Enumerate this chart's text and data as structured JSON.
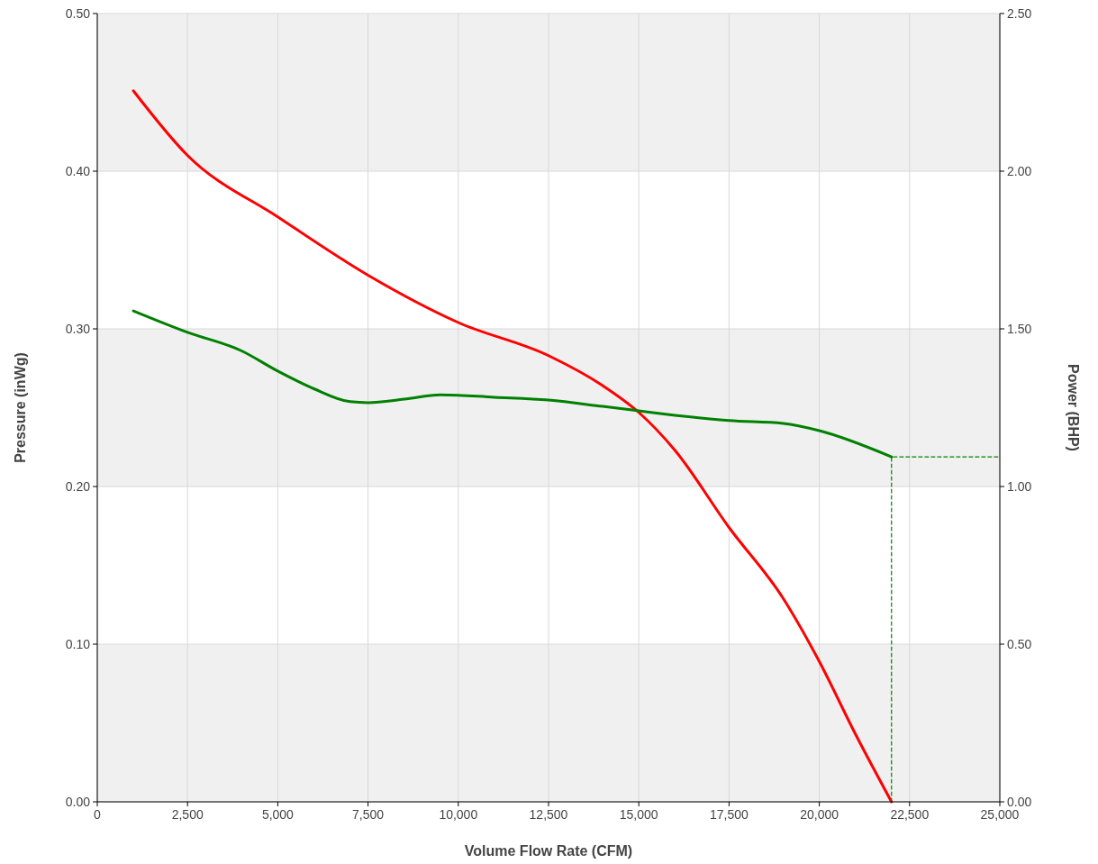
{
  "chart_data": {
    "type": "line",
    "xlabel": "Volume Flow Rate (CFM)",
    "ylabel": "Pressure (inWg)",
    "y2label": "Power (BHP)",
    "xlim": [
      0,
      25000
    ],
    "xticks": [
      {
        "value": 0,
        "label": "0"
      },
      {
        "value": 2500,
        "label": "2,500"
      },
      {
        "value": 5000,
        "label": "5,000"
      },
      {
        "value": 7500,
        "label": "7,500"
      },
      {
        "value": 10000,
        "label": "10,000"
      },
      {
        "value": 12500,
        "label": "12,500"
      },
      {
        "value": 15000,
        "label": "15,000"
      },
      {
        "value": 17500,
        "label": "17,500"
      },
      {
        "value": 20000,
        "label": "20,000"
      },
      {
        "value": 22500,
        "label": "22,500"
      },
      {
        "value": 25000,
        "label": "25,000"
      }
    ],
    "ylim": [
      0,
      0.5
    ],
    "yticks": [
      {
        "value": 0,
        "label": "0.00"
      },
      {
        "value": 0.1,
        "label": "0.10"
      },
      {
        "value": 0.2,
        "label": "0.20"
      },
      {
        "value": 0.3,
        "label": "0.30"
      },
      {
        "value": 0.4,
        "label": "0.40"
      },
      {
        "value": 0.5,
        "label": "0.50"
      }
    ],
    "y2lim": [
      0,
      2.5
    ],
    "y2ticks": [
      {
        "value": 0,
        "label": "0.00"
      },
      {
        "value": 0.5,
        "label": "0.50"
      },
      {
        "value": 1,
        "label": "1.00"
      },
      {
        "value": 1.5,
        "label": "1.50"
      },
      {
        "value": 2,
        "label": "2.00"
      },
      {
        "value": 2.5,
        "label": "2.50"
      }
    ],
    "grid": true,
    "marker": "none",
    "line_style": "solid",
    "series": [
      {
        "color": "#ff0000",
        "x": [
          1000,
          2500,
          5000,
          7500,
          10000,
          12500,
          14000,
          15000,
          16000,
          17500,
          19000,
          20000,
          21000,
          22000
        ],
        "values": [
          0.451,
          0.41,
          0.371,
          0.334,
          0.304,
          0.283,
          0.264,
          0.247,
          0.223,
          0.174,
          0.129,
          0.089,
          0.043,
          0
        ]
      },
      {
        "color": "#008000",
        "axis": "y2",
        "x": [
          1000,
          2500,
          4000,
          5000,
          6000,
          7000,
          7500,
          8500,
          9500,
          11000,
          12500,
          14000,
          15000,
          16000,
          17500,
          19000,
          20000,
          22000
        ],
        "values": [
          1.557,
          1.489,
          1.43,
          1.366,
          1.31,
          1.269,
          1.266,
          1.277,
          1.291,
          1.283,
          1.274,
          1.254,
          1.24,
          1.226,
          1.209,
          1.2,
          1.177,
          1.094
        ]
      },
      {
        "color": "#008000",
        "axis": "y2",
        "line_style": "dashed",
        "x": [
          22000,
          22000,
          25000
        ],
        "values": [
          0,
          1.094,
          1.094
        ]
      }
    ]
  }
}
